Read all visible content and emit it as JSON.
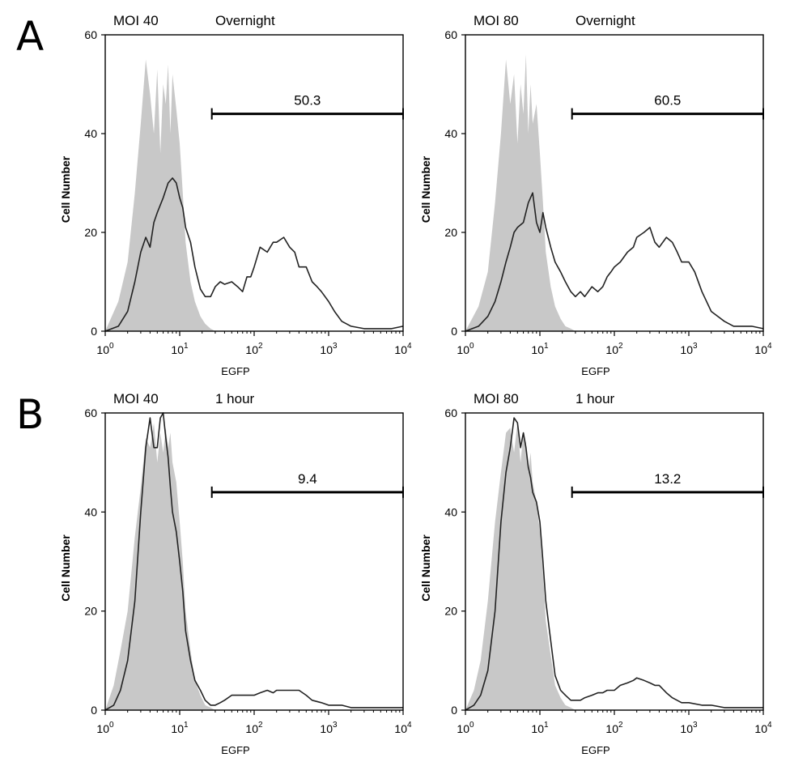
{
  "panel_labels": [
    "A",
    "B"
  ],
  "colors": {
    "control_fill": "#c8c8c8",
    "sample_line": "#222222",
    "axis": "#000000"
  },
  "chart_data": [
    {
      "type": "area",
      "panel": "A",
      "title_left": "MOI 40",
      "title_right": "Overnight",
      "xlabel": "EGFP",
      "ylabel": "Cell Number",
      "xscale": "log",
      "xlim": [
        1,
        10000
      ],
      "ylim": [
        0,
        60
      ],
      "yticks": [
        0,
        20,
        40,
        60
      ],
      "xticks": [
        {
          "value": 1,
          "base": "10",
          "exp": "0"
        },
        {
          "value": 10,
          "base": "10",
          "exp": "1"
        },
        {
          "value": 100,
          "base": "10",
          "exp": "2"
        },
        {
          "value": 1000,
          "base": "10",
          "exp": "3"
        },
        {
          "value": 10000,
          "base": "10",
          "exp": "4"
        }
      ],
      "gate": {
        "label": "50.3",
        "x_start": 27,
        "x_end": 10000,
        "y": 44
      },
      "series": [
        {
          "kind": "filled",
          "x": [
            1,
            1.5,
            2,
            2.5,
            3,
            3.5,
            4,
            4.5,
            5,
            5.5,
            6,
            6.5,
            7,
            7.5,
            8,
            9,
            10,
            11,
            12,
            14,
            16,
            19,
            22,
            26,
            30,
            50,
            100,
            1000,
            10000
          ],
          "y": [
            0,
            6,
            14,
            28,
            42,
            55,
            48,
            40,
            53,
            36,
            50,
            46,
            54,
            40,
            52,
            45,
            38,
            28,
            18,
            10,
            6,
            3,
            1.5,
            0.5,
            0,
            0,
            0,
            0,
            0
          ]
        },
        {
          "kind": "line",
          "x": [
            1,
            1.5,
            2,
            2.5,
            3,
            3.5,
            4,
            4.5,
            5,
            6,
            7,
            8,
            9,
            10,
            11,
            12,
            14,
            16,
            19,
            22,
            26,
            30,
            35,
            40,
            50,
            60,
            70,
            80,
            90,
            100,
            120,
            150,
            180,
            200,
            250,
            300,
            350,
            400,
            500,
            600,
            700,
            800,
            1000,
            1200,
            1500,
            2000,
            3000,
            4000,
            5000,
            7000,
            10000
          ],
          "y": [
            0,
            1,
            4,
            10,
            16,
            19,
            17,
            22,
            24,
            27,
            30,
            31,
            30,
            27,
            25,
            21,
            18,
            13,
            8.5,
            7,
            7,
            9,
            10,
            9.5,
            10,
            9,
            8,
            11,
            11,
            13,
            17,
            16,
            18,
            18,
            19,
            17,
            16,
            13,
            13,
            10,
            9,
            8,
            6,
            4,
            2,
            1,
            0.5,
            0.5,
            0.5,
            0.5,
            1
          ]
        }
      ]
    },
    {
      "type": "area",
      "panel": "A",
      "title_left": "MOI 80",
      "title_right": "Overnight",
      "xlabel": "EGFP",
      "ylabel": "Cell Number",
      "xscale": "log",
      "xlim": [
        1,
        10000
      ],
      "ylim": [
        0,
        60
      ],
      "yticks": [
        0,
        20,
        40,
        60
      ],
      "xticks": [
        {
          "value": 1,
          "base": "10",
          "exp": "0"
        },
        {
          "value": 10,
          "base": "10",
          "exp": "1"
        },
        {
          "value": 100,
          "base": "10",
          "exp": "2"
        },
        {
          "value": 1000,
          "base": "10",
          "exp": "3"
        },
        {
          "value": 10000,
          "base": "10",
          "exp": "4"
        }
      ],
      "gate": {
        "label": "60.5",
        "x_start": 27,
        "x_end": 10000,
        "y": 44
      },
      "series": [
        {
          "kind": "filled",
          "x": [
            1,
            1.5,
            2,
            2.5,
            3,
            3.5,
            4,
            4.5,
            5,
            5.5,
            6,
            6.5,
            7,
            7.5,
            8,
            9,
            10,
            11,
            12,
            14,
            16,
            19,
            22,
            26,
            30,
            50,
            100,
            1000,
            10000
          ],
          "y": [
            0,
            5,
            12,
            26,
            40,
            55,
            46,
            52,
            38,
            50,
            44,
            56,
            40,
            50,
            42,
            46,
            36,
            26,
            16,
            9,
            5,
            2.5,
            1,
            0.5,
            0,
            0,
            0,
            0,
            0
          ]
        },
        {
          "kind": "line",
          "x": [
            1,
            1.5,
            2,
            2.5,
            3,
            3.5,
            4,
            4.5,
            5,
            6,
            7,
            8,
            9,
            10,
            11,
            12,
            14,
            16,
            19,
            22,
            26,
            30,
            35,
            40,
            50,
            60,
            70,
            80,
            90,
            100,
            120,
            150,
            180,
            200,
            250,
            300,
            350,
            400,
            500,
            600,
            700,
            800,
            1000,
            1200,
            1500,
            2000,
            3000,
            4000,
            5000,
            7000,
            10000
          ],
          "y": [
            0,
            1,
            3,
            6,
            10,
            14,
            17,
            20,
            21,
            22,
            26,
            28,
            22,
            20,
            24,
            21,
            17,
            14,
            12,
            10,
            8,
            7,
            8,
            7,
            9,
            8,
            9,
            11,
            12,
            13,
            14,
            16,
            17,
            19,
            20,
            21,
            18,
            17,
            19,
            18,
            16,
            14,
            14,
            12,
            8,
            4,
            2,
            1,
            1,
            1,
            0.5
          ]
        }
      ]
    },
    {
      "type": "area",
      "panel": "B",
      "title_left": "MOI 40",
      "title_right": "1 hour",
      "xlabel": "EGFP",
      "ylabel": "Cell Number",
      "xscale": "log",
      "xlim": [
        1,
        10000
      ],
      "ylim": [
        0,
        60
      ],
      "yticks": [
        0,
        20,
        40,
        60
      ],
      "xticks": [
        {
          "value": 1,
          "base": "10",
          "exp": "0"
        },
        {
          "value": 10,
          "base": "10",
          "exp": "1"
        },
        {
          "value": 100,
          "base": "10",
          "exp": "2"
        },
        {
          "value": 1000,
          "base": "10",
          "exp": "3"
        },
        {
          "value": 10000,
          "base": "10",
          "exp": "4"
        }
      ],
      "gate": {
        "label": "9.4",
        "x_start": 27,
        "x_end": 10000,
        "y": 44
      },
      "series": [
        {
          "kind": "filled",
          "x": [
            1,
            1.3,
            1.6,
            2,
            2.5,
            3,
            3.5,
            4,
            4.5,
            5,
            5.5,
            6,
            6.5,
            7,
            7.5,
            8,
            9,
            10,
            11,
            12,
            14,
            16,
            19,
            22,
            26,
            30,
            50,
            100,
            1000,
            10000
          ],
          "y": [
            0,
            5,
            12,
            20,
            35,
            45,
            55,
            53,
            58,
            50,
            56,
            52,
            57,
            53,
            56,
            50,
            46,
            38,
            30,
            20,
            12,
            6,
            3,
            1,
            0.5,
            0,
            0,
            0,
            0,
            0
          ]
        },
        {
          "kind": "line",
          "x": [
            1,
            1.3,
            1.6,
            2,
            2.5,
            3,
            3.5,
            4,
            4.5,
            5,
            5.5,
            6,
            6.5,
            7,
            7.5,
            8,
            9,
            10,
            11,
            12,
            14,
            16,
            19,
            22,
            26,
            30,
            35,
            40,
            50,
            60,
            70,
            80,
            100,
            120,
            150,
            180,
            200,
            250,
            300,
            350,
            400,
            500,
            600,
            800,
            1000,
            1500,
            2000,
            3000,
            5000,
            10000
          ],
          "y": [
            0,
            1,
            4,
            10,
            22,
            40,
            53,
            59,
            53,
            53,
            59,
            60,
            55,
            51,
            45,
            40,
            36,
            30,
            24,
            16,
            10,
            6,
            4,
            2,
            1,
            1,
            1.5,
            2,
            3,
            3,
            3,
            3,
            3,
            3.5,
            4,
            3.5,
            4,
            4,
            4,
            4,
            4,
            3,
            2,
            1.5,
            1,
            1,
            0.5,
            0.5,
            0.5,
            0.5
          ]
        }
      ]
    },
    {
      "type": "area",
      "panel": "B",
      "title_left": "MOI 80",
      "title_right": "1 hour",
      "xlabel": "EGFP",
      "ylabel": "Cell Number",
      "xscale": "log",
      "xlim": [
        1,
        10000
      ],
      "ylim": [
        0,
        60
      ],
      "yticks": [
        0,
        20,
        40,
        60
      ],
      "xticks": [
        {
          "value": 1,
          "base": "10",
          "exp": "0"
        },
        {
          "value": 10,
          "base": "10",
          "exp": "1"
        },
        {
          "value": 100,
          "base": "10",
          "exp": "2"
        },
        {
          "value": 1000,
          "base": "10",
          "exp": "3"
        },
        {
          "value": 10000,
          "base": "10",
          "exp": "4"
        }
      ],
      "gate": {
        "label": "13.2",
        "x_start": 27,
        "x_end": 10000,
        "y": 44
      },
      "series": [
        {
          "kind": "filled",
          "x": [
            1,
            1.3,
            1.6,
            2,
            2.5,
            3,
            3.5,
            4,
            4.5,
            5,
            5.5,
            6,
            6.5,
            7,
            7.5,
            8,
            9,
            10,
            11,
            12,
            14,
            16,
            19,
            22,
            26,
            30,
            50,
            100,
            1000,
            10000
          ],
          "y": [
            0,
            4,
            10,
            22,
            38,
            48,
            56,
            57,
            52,
            58,
            50,
            56,
            54,
            48,
            52,
            46,
            42,
            36,
            28,
            18,
            11,
            5,
            2.5,
            1,
            0.5,
            0,
            0,
            0,
            0,
            0
          ]
        },
        {
          "kind": "line",
          "x": [
            1,
            1.3,
            1.6,
            2,
            2.5,
            3,
            3.5,
            4,
            4.5,
            5,
            5.5,
            6,
            6.5,
            7,
            7.5,
            8,
            9,
            10,
            11,
            12,
            14,
            16,
            19,
            22,
            26,
            30,
            35,
            40,
            50,
            60,
            70,
            80,
            100,
            120,
            150,
            180,
            200,
            250,
            300,
            350,
            400,
            500,
            600,
            800,
            1000,
            1500,
            2000,
            3000,
            5000,
            10000
          ],
          "y": [
            0,
            1,
            3,
            8,
            20,
            38,
            48,
            53,
            59,
            58,
            53,
            56,
            53,
            49,
            47,
            44,
            42,
            38,
            30,
            22,
            14,
            7,
            4,
            3,
            2,
            2,
            2,
            2.5,
            3,
            3.5,
            3.5,
            4,
            4,
            5,
            5.5,
            6,
            6.5,
            6,
            5.5,
            5,
            5,
            3.5,
            2.5,
            1.5,
            1.5,
            1,
            1,
            0.5,
            0.5,
            0.5
          ]
        }
      ]
    }
  ]
}
